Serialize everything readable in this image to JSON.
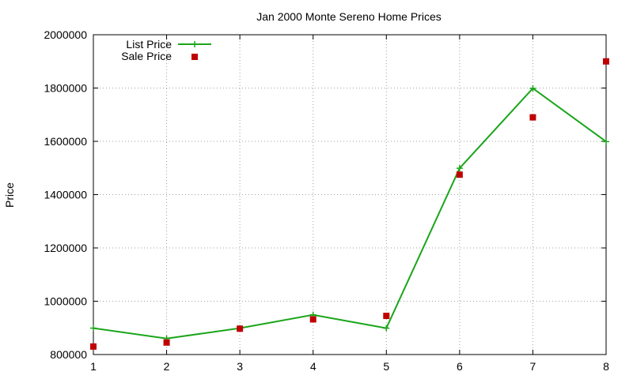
{
  "chart_data": {
    "type": "line",
    "title": "Jan 2000 Monte Sereno Home Prices",
    "xlabel": "",
    "ylabel": "Price",
    "x": [
      1,
      2,
      3,
      4,
      5,
      6,
      7,
      8
    ],
    "xlim": [
      1,
      8
    ],
    "ylim": [
      800000,
      2000000
    ],
    "yticks": [
      "800000",
      "1000000",
      "1200000",
      "1400000",
      "1600000",
      "1800000",
      "2000000"
    ],
    "xticks": [
      "1",
      "2",
      "3",
      "4",
      "5",
      "6",
      "7",
      "8"
    ],
    "grid": true,
    "legend_position": "top-left",
    "series": [
      {
        "name": "List Price",
        "style": "line+cross",
        "color": "#1aa51a",
        "values": [
          899000,
          860000,
          899000,
          949000,
          899000,
          1499000,
          1799000,
          1599000
        ]
      },
      {
        "name": "Sale Price",
        "style": "square-points",
        "color": "#c00000",
        "values": [
          830000,
          845000,
          897000,
          932000,
          945000,
          1475000,
          1690000,
          1900000
        ]
      }
    ]
  }
}
